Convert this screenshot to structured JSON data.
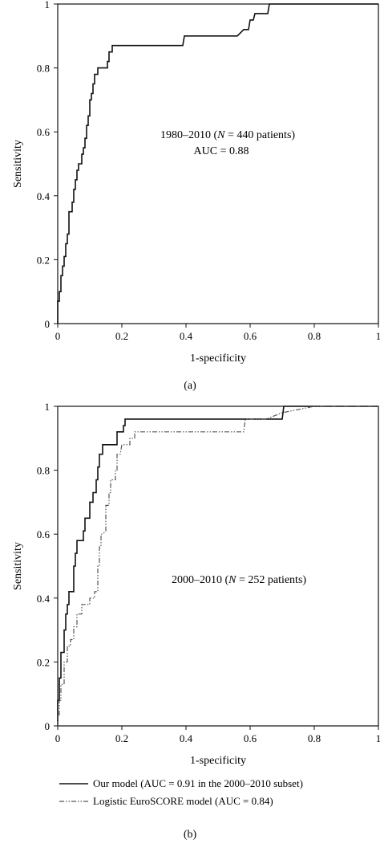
{
  "chart_data": [
    {
      "type": "line",
      "panel_label": "(a)",
      "xlabel": "1-specificity",
      "ylabel": "Sensitivity",
      "xlim": [
        0,
        1
      ],
      "ylim": [
        0,
        1
      ],
      "x_ticks": [
        "0",
        "0.2",
        "0.4",
        "0.6",
        "0.8",
        "1"
      ],
      "y_ticks": [
        "0",
        "0.2",
        "0.4",
        "0.6",
        "0.8",
        "1"
      ],
      "annotation_parts": [
        "1980–2010 (",
        "N",
        " = 440 patients)"
      ],
      "annotation_line2": "AUC = 0.88",
      "series": [
        {
          "color": "#111111",
          "style": "solid",
          "points": [
            [
              0,
              0
            ],
            [
              0,
              0.07
            ],
            [
              0.005,
              0.07
            ],
            [
              0.005,
              0.1
            ],
            [
              0.01,
              0.1
            ],
            [
              0.01,
              0.15
            ],
            [
              0.015,
              0.15
            ],
            [
              0.015,
              0.18
            ],
            [
              0.02,
              0.18
            ],
            [
              0.02,
              0.21
            ],
            [
              0.025,
              0.21
            ],
            [
              0.025,
              0.25
            ],
            [
              0.03,
              0.25
            ],
            [
              0.03,
              0.28
            ],
            [
              0.035,
              0.28
            ],
            [
              0.035,
              0.35
            ],
            [
              0.045,
              0.35
            ],
            [
              0.045,
              0.38
            ],
            [
              0.05,
              0.38
            ],
            [
              0.05,
              0.42
            ],
            [
              0.055,
              0.42
            ],
            [
              0.055,
              0.45
            ],
            [
              0.06,
              0.45
            ],
            [
              0.06,
              0.48
            ],
            [
              0.065,
              0.48
            ],
            [
              0.065,
              0.5
            ],
            [
              0.075,
              0.5
            ],
            [
              0.075,
              0.53
            ],
            [
              0.08,
              0.53
            ],
            [
              0.08,
              0.55
            ],
            [
              0.085,
              0.55
            ],
            [
              0.085,
              0.58
            ],
            [
              0.09,
              0.58
            ],
            [
              0.09,
              0.62
            ],
            [
              0.095,
              0.62
            ],
            [
              0.095,
              0.65
            ],
            [
              0.1,
              0.65
            ],
            [
              0.1,
              0.7
            ],
            [
              0.105,
              0.7
            ],
            [
              0.105,
              0.72
            ],
            [
              0.11,
              0.72
            ],
            [
              0.11,
              0.75
            ],
            [
              0.115,
              0.75
            ],
            [
              0.115,
              0.78
            ],
            [
              0.125,
              0.78
            ],
            [
              0.125,
              0.8
            ],
            [
              0.155,
              0.8
            ],
            [
              0.155,
              0.82
            ],
            [
              0.16,
              0.82
            ],
            [
              0.16,
              0.85
            ],
            [
              0.17,
              0.85
            ],
            [
              0.17,
              0.87
            ],
            [
              0.18,
              0.87
            ],
            [
              0.39,
              0.87
            ],
            [
              0.395,
              0.9
            ],
            [
              0.56,
              0.9
            ],
            [
              0.58,
              0.92
            ],
            [
              0.595,
              0.92
            ],
            [
              0.6,
              0.95
            ],
            [
              0.61,
              0.95
            ],
            [
              0.615,
              0.97
            ],
            [
              0.655,
              0.97
            ],
            [
              0.66,
              1.0
            ],
            [
              1,
              1
            ]
          ]
        }
      ]
    },
    {
      "type": "line",
      "panel_label": "(b)",
      "xlabel": "1-specificity",
      "ylabel": "Sensitivity",
      "xlim": [
        0,
        1
      ],
      "ylim": [
        0,
        1
      ],
      "x_ticks": [
        "0",
        "0.2",
        "0.4",
        "0.6",
        "0.8",
        "1"
      ],
      "y_ticks": [
        "0",
        "0.2",
        "0.4",
        "0.6",
        "0.8",
        "1"
      ],
      "annotation_parts": [
        "2000–2010 (",
        "N",
        " = 252 patients)"
      ],
      "annotation_line2": "",
      "series": [
        {
          "name": "Our model (AUC = 0.91 in the 2000–2010 subset)",
          "color": "#111111",
          "style": "solid",
          "points": [
            [
              0,
              0
            ],
            [
              0,
              0.08
            ],
            [
              0.005,
              0.08
            ],
            [
              0.005,
              0.15
            ],
            [
              0.01,
              0.15
            ],
            [
              0.01,
              0.23
            ],
            [
              0.02,
              0.23
            ],
            [
              0.02,
              0.3
            ],
            [
              0.025,
              0.3
            ],
            [
              0.025,
              0.35
            ],
            [
              0.03,
              0.35
            ],
            [
              0.03,
              0.38
            ],
            [
              0.035,
              0.38
            ],
            [
              0.035,
              0.42
            ],
            [
              0.05,
              0.42
            ],
            [
              0.05,
              0.5
            ],
            [
              0.055,
              0.5
            ],
            [
              0.055,
              0.54
            ],
            [
              0.06,
              0.54
            ],
            [
              0.06,
              0.58
            ],
            [
              0.08,
              0.58
            ],
            [
              0.08,
              0.61
            ],
            [
              0.085,
              0.61
            ],
            [
              0.085,
              0.65
            ],
            [
              0.1,
              0.65
            ],
            [
              0.1,
              0.7
            ],
            [
              0.11,
              0.7
            ],
            [
              0.11,
              0.73
            ],
            [
              0.12,
              0.73
            ],
            [
              0.12,
              0.77
            ],
            [
              0.125,
              0.77
            ],
            [
              0.125,
              0.81
            ],
            [
              0.13,
              0.81
            ],
            [
              0.13,
              0.85
            ],
            [
              0.14,
              0.85
            ],
            [
              0.14,
              0.88
            ],
            [
              0.185,
              0.88
            ],
            [
              0.185,
              0.92
            ],
            [
              0.205,
              0.92
            ],
            [
              0.205,
              0.94
            ],
            [
              0.21,
              0.94
            ],
            [
              0.21,
              0.96
            ],
            [
              0.7,
              0.96
            ],
            [
              0.705,
              1.0
            ],
            [
              1,
              1
            ]
          ]
        },
        {
          "name": "Logistic EuroSCORE model (AUC = 0.84)",
          "color": "#555555",
          "style": "dashdot",
          "points": [
            [
              0,
              0
            ],
            [
              0,
              0.03
            ],
            [
              0.005,
              0.03
            ],
            [
              0.005,
              0.08
            ],
            [
              0.01,
              0.08
            ],
            [
              0.01,
              0.13
            ],
            [
              0.02,
              0.13
            ],
            [
              0.02,
              0.2
            ],
            [
              0.03,
              0.2
            ],
            [
              0.03,
              0.25
            ],
            [
              0.04,
              0.25
            ],
            [
              0.04,
              0.27
            ],
            [
              0.05,
              0.27
            ],
            [
              0.05,
              0.31
            ],
            [
              0.06,
              0.31
            ],
            [
              0.06,
              0.35
            ],
            [
              0.075,
              0.35
            ],
            [
              0.075,
              0.38
            ],
            [
              0.1,
              0.38
            ],
            [
              0.1,
              0.4
            ],
            [
              0.115,
              0.4
            ],
            [
              0.115,
              0.42
            ],
            [
              0.125,
              0.42
            ],
            [
              0.125,
              0.5
            ],
            [
              0.13,
              0.5
            ],
            [
              0.13,
              0.56
            ],
            [
              0.135,
              0.56
            ],
            [
              0.135,
              0.6
            ],
            [
              0.14,
              0.6
            ],
            [
              0.15,
              0.61
            ],
            [
              0.15,
              0.69
            ],
            [
              0.16,
              0.69
            ],
            [
              0.16,
              0.73
            ],
            [
              0.165,
              0.73
            ],
            [
              0.165,
              0.77
            ],
            [
              0.18,
              0.77
            ],
            [
              0.18,
              0.8
            ],
            [
              0.185,
              0.8
            ],
            [
              0.185,
              0.85
            ],
            [
              0.195,
              0.85
            ],
            [
              0.2,
              0.88
            ],
            [
              0.225,
              0.88
            ],
            [
              0.225,
              0.9
            ],
            [
              0.24,
              0.9
            ],
            [
              0.24,
              0.92
            ],
            [
              0.58,
              0.92
            ],
            [
              0.585,
              0.96
            ],
            [
              0.65,
              0.96
            ],
            [
              0.7,
              0.98
            ],
            [
              0.8,
              1.0
            ],
            [
              1,
              1
            ]
          ]
        }
      ]
    }
  ]
}
